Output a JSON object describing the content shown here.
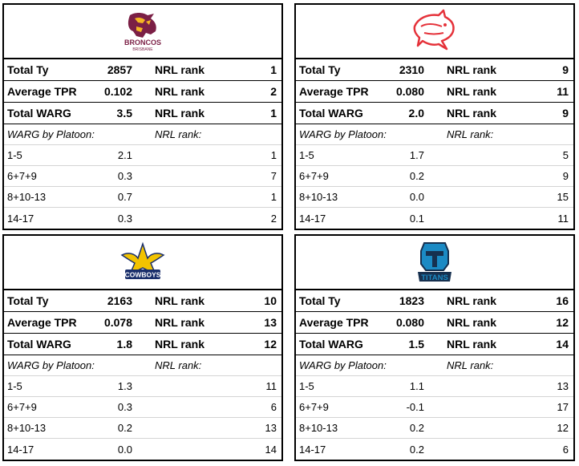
{
  "labels": {
    "total_ty": "Total Ty",
    "average_tpr": "Average TPR",
    "total_warg": "Total WARG",
    "nrl_rank": "NRL rank",
    "warg_by_platoon": "WARG by Platoon:",
    "nrl_rank_sub": "NRL rank:"
  },
  "teams": [
    {
      "logo": "broncos-logo",
      "logo_text": "BRONCOS",
      "logo_subtext": "BRISBANE",
      "total_ty": "2857",
      "total_ty_rank": "1",
      "average_tpr": "0.102",
      "average_tpr_rank": "2",
      "total_warg": "3.5",
      "total_warg_rank": "1",
      "platoons": [
        {
          "label": "1-5",
          "warg": "2.1",
          "rank": "1"
        },
        {
          "label": "6+7+9",
          "warg": "0.3",
          "rank": "7"
        },
        {
          "label": "8+10-13",
          "warg": "0.7",
          "rank": "1"
        },
        {
          "label": "14-17",
          "warg": "0.3",
          "rank": "2"
        }
      ]
    },
    {
      "logo": "dolphins-logo",
      "logo_text": "",
      "logo_subtext": "",
      "total_ty": "2310",
      "total_ty_rank": "9",
      "average_tpr": "0.080",
      "average_tpr_rank": "11",
      "total_warg": "2.0",
      "total_warg_rank": "9",
      "platoons": [
        {
          "label": "1-5",
          "warg": "1.7",
          "rank": "5"
        },
        {
          "label": "6+7+9",
          "warg": "0.2",
          "rank": "9"
        },
        {
          "label": "8+10-13",
          "warg": "0.0",
          "rank": "15"
        },
        {
          "label": "14-17",
          "warg": "0.1",
          "rank": "11"
        }
      ]
    },
    {
      "logo": "cowboys-logo",
      "logo_text": "COWBOYS",
      "logo_subtext": "",
      "total_ty": "2163",
      "total_ty_rank": "10",
      "average_tpr": "0.078",
      "average_tpr_rank": "13",
      "total_warg": "1.8",
      "total_warg_rank": "12",
      "platoons": [
        {
          "label": "1-5",
          "warg": "1.3",
          "rank": "11"
        },
        {
          "label": "6+7+9",
          "warg": "0.3",
          "rank": "6"
        },
        {
          "label": "8+10-13",
          "warg": "0.2",
          "rank": "13"
        },
        {
          "label": "14-17",
          "warg": "0.0",
          "rank": "14"
        }
      ]
    },
    {
      "logo": "titans-logo",
      "logo_text": "TITANS",
      "logo_subtext": "",
      "total_ty": "1823",
      "total_ty_rank": "16",
      "average_tpr": "0.080",
      "average_tpr_rank": "12",
      "total_warg": "1.5",
      "total_warg_rank": "14",
      "platoons": [
        {
          "label": "1-5",
          "warg": "1.1",
          "rank": "13"
        },
        {
          "label": "6+7+9",
          "warg": "-0.1",
          "rank": "17"
        },
        {
          "label": "8+10-13",
          "warg": "0.2",
          "rank": "12"
        },
        {
          "label": "14-17",
          "warg": "0.2",
          "rank": "6"
        }
      ]
    }
  ],
  "colors": {
    "broncos_maroon": "#7b1f45",
    "broncos_gold": "#f5b623",
    "dolphins_red": "#e5323a",
    "cowboys_navy": "#1a2f6b",
    "cowboys_gold": "#f2c300",
    "titans_blue": "#1b8ac4",
    "titans_navy": "#16304f"
  }
}
